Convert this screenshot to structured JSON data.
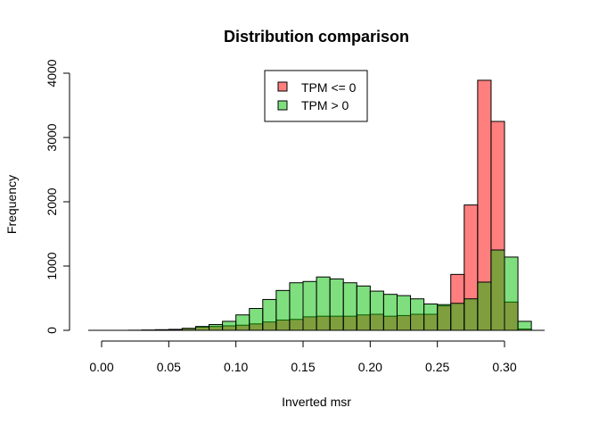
{
  "chart_data": {
    "type": "bar",
    "subtype": "overlaid-histogram",
    "title": "Distribution comparison",
    "xlabel": "Inverted msr",
    "ylabel": "Frequency",
    "xlim": [
      0.0,
      0.32
    ],
    "ylim": [
      0,
      4000
    ],
    "x_ticks": [
      "0.00",
      "0.05",
      "0.10",
      "0.15",
      "0.20",
      "0.25",
      "0.30"
    ],
    "y_ticks": [
      "0",
      "1000",
      "2000",
      "3000",
      "4000"
    ],
    "bin_width": 0.01,
    "bin_edges": [
      0.0,
      0.01,
      0.02,
      0.03,
      0.04,
      0.05,
      0.06,
      0.07,
      0.08,
      0.09,
      0.1,
      0.11,
      0.12,
      0.13,
      0.14,
      0.15,
      0.16,
      0.17,
      0.18,
      0.19,
      0.2,
      0.21,
      0.22,
      0.23,
      0.24,
      0.25,
      0.26,
      0.27,
      0.28,
      0.29,
      0.3,
      0.31,
      0.32
    ],
    "grid": false,
    "legend_position": "top-center",
    "series": [
      {
        "name": "TPM <= 0",
        "color": "#ff0000",
        "opacity": 0.5,
        "values": [
          0,
          0,
          2,
          5,
          10,
          15,
          30,
          50,
          60,
          70,
          80,
          100,
          130,
          160,
          170,
          210,
          220,
          220,
          220,
          240,
          250,
          220,
          230,
          250,
          250,
          380,
          870,
          1950,
          3890,
          3250,
          440,
          20
        ]
      },
      {
        "name": "TPM > 0",
        "color": "#00c000",
        "opacity": 0.5,
        "values": [
          0,
          0,
          0,
          2,
          5,
          10,
          30,
          60,
          90,
          140,
          240,
          340,
          480,
          620,
          740,
          760,
          830,
          800,
          740,
          690,
          610,
          560,
          540,
          490,
          410,
          400,
          420,
          490,
          750,
          1250,
          1140,
          140
        ]
      }
    ],
    "legend": [
      "TPM <= 0",
      "TPM > 0"
    ]
  }
}
